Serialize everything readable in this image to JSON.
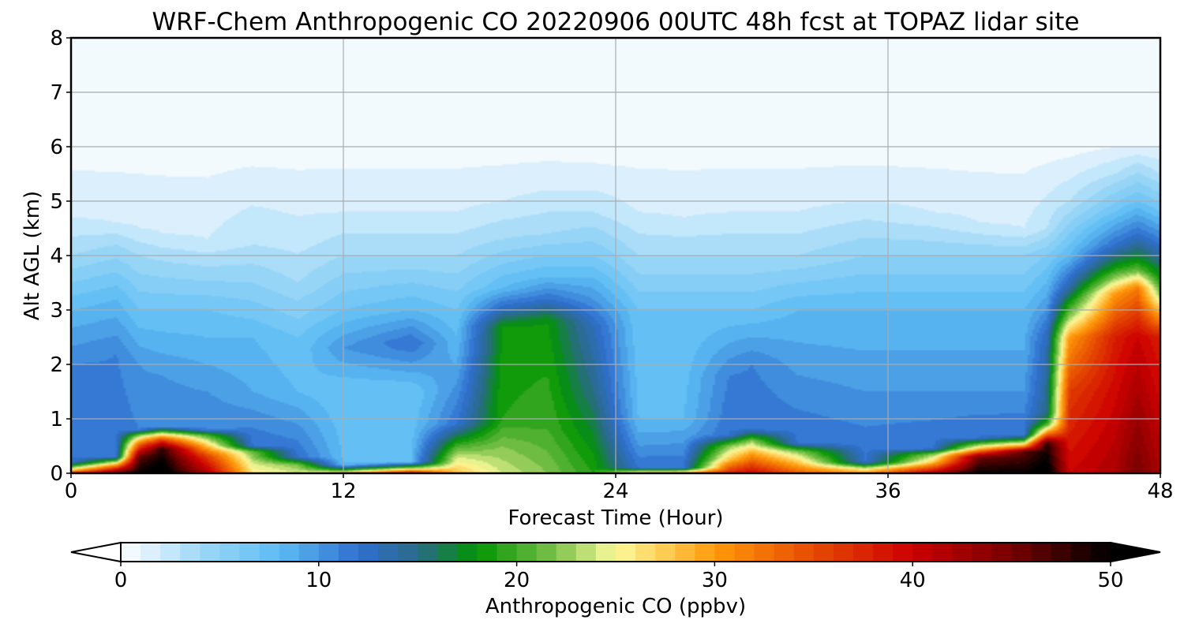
{
  "chart_data": {
    "type": "heatmap",
    "title": "WRF-Chem Anthropogenic CO  20220906 00UTC 48h fcst at TOPAZ lidar site",
    "xlabel": "Forecast Time (Hour)",
    "ylabel": "Alt AGL (km)",
    "xlim": [
      0,
      48
    ],
    "ylim": [
      0,
      8
    ],
    "xticks": [
      0,
      12,
      24,
      36,
      48
    ],
    "yticks": [
      0,
      1,
      2,
      3,
      4,
      5,
      6,
      7,
      8
    ],
    "grid": true,
    "colorbar": {
      "label": "Anthropogenic CO  (ppbv)",
      "min": 0,
      "max": 50,
      "ticks": [
        0,
        10,
        20,
        30,
        40,
        50
      ],
      "extend": "both",
      "stops": [
        {
          "value": 0,
          "color": "#ffffff"
        },
        {
          "value": 4,
          "color": "#9fd8f8"
        },
        {
          "value": 8,
          "color": "#5cbdf3"
        },
        {
          "value": 12,
          "color": "#2f6fd0"
        },
        {
          "value": 15,
          "color": "#2a6a88"
        },
        {
          "value": 18,
          "color": "#019401"
        },
        {
          "value": 22,
          "color": "#7fc24c"
        },
        {
          "value": 25,
          "color": "#fdfb9c"
        },
        {
          "value": 30,
          "color": "#ff9a0a"
        },
        {
          "value": 35,
          "color": "#e64a00"
        },
        {
          "value": 40,
          "color": "#cc0000"
        },
        {
          "value": 45,
          "color": "#760000"
        },
        {
          "value": 50,
          "color": "#000000"
        }
      ]
    },
    "hours": [
      0,
      2,
      3,
      4,
      6,
      8,
      10,
      12,
      15,
      17,
      19,
      21,
      23,
      25,
      27,
      29,
      30,
      32,
      35,
      38,
      40,
      42,
      43,
      44,
      46,
      47,
      48
    ],
    "field_profiles": [
      {
        "bands": [
          [
            0,
            40
          ],
          [
            0.05,
            28
          ],
          [
            0.2,
            12
          ],
          [
            2.0,
            11
          ],
          [
            3.0,
            8
          ],
          [
            4.0,
            4
          ],
          [
            4.7,
            2
          ],
          [
            6.0,
            0.5
          ],
          [
            8.0,
            0
          ]
        ]
      },
      {
        "bands": [
          [
            0,
            47
          ],
          [
            0.15,
            30
          ],
          [
            0.3,
            12
          ],
          [
            2.2,
            11
          ],
          [
            3.2,
            8
          ],
          [
            4.2,
            4
          ],
          [
            4.6,
            2
          ],
          [
            6.0,
            0.5
          ],
          [
            8.0,
            0
          ]
        ]
      },
      {
        "bands": [
          [
            0,
            50
          ],
          [
            0.3,
            46
          ],
          [
            0.55,
            32
          ],
          [
            0.7,
            22
          ],
          [
            0.8,
            11
          ],
          [
            2.0,
            10
          ],
          [
            3.0,
            7
          ],
          [
            4.0,
            4
          ],
          [
            4.5,
            2
          ],
          [
            6.0,
            0.5
          ],
          [
            8.0,
            0
          ]
        ]
      },
      {
        "bands": [
          [
            0,
            52
          ],
          [
            0.45,
            48
          ],
          [
            0.62,
            35
          ],
          [
            0.75,
            22
          ],
          [
            0.85,
            11
          ],
          [
            1.8,
            10
          ],
          [
            3.0,
            7
          ],
          [
            3.9,
            4
          ],
          [
            4.4,
            2
          ],
          [
            6.0,
            0.5
          ],
          [
            8.0,
            0
          ]
        ]
      },
      {
        "bands": [
          [
            0,
            42
          ],
          [
            0.3,
            36
          ],
          [
            0.55,
            26
          ],
          [
            0.7,
            20
          ],
          [
            0.8,
            11
          ],
          [
            1.5,
            10
          ],
          [
            3.0,
            7
          ],
          [
            3.8,
            4
          ],
          [
            4.3,
            2
          ],
          [
            6.0,
            0.5
          ],
          [
            8.0,
            0
          ]
        ]
      },
      {
        "bands": [
          [
            0,
            26
          ],
          [
            0.2,
            24
          ],
          [
            0.4,
            21
          ],
          [
            0.5,
            12
          ],
          [
            1.5,
            9
          ],
          [
            2.5,
            8
          ],
          [
            3.5,
            5
          ],
          [
            4.2,
            3
          ],
          [
            6.0,
            0.5
          ],
          [
            8.0,
            0
          ]
        ]
      },
      {
        "bands": [
          [
            0,
            24
          ],
          [
            0.15,
            22
          ],
          [
            0.3,
            12
          ],
          [
            1.5,
            8
          ],
          [
            2.5,
            7
          ],
          [
            3.5,
            4
          ],
          [
            4.3,
            2.5
          ],
          [
            6.0,
            0.5
          ],
          [
            8.0,
            0
          ]
        ]
      },
      {
        "bands": [
          [
            0,
            30
          ],
          [
            0.05,
            20
          ],
          [
            0.15,
            8
          ],
          [
            1.5,
            7
          ],
          [
            2.3,
            10
          ],
          [
            3.0,
            7
          ],
          [
            4.0,
            4
          ],
          [
            4.8,
            2
          ],
          [
            6.0,
            0.5
          ],
          [
            8.0,
            0
          ]
        ]
      },
      {
        "bands": [
          [
            0,
            40
          ],
          [
            0.1,
            22
          ],
          [
            0.2,
            8
          ],
          [
            1.5,
            7
          ],
          [
            2.4,
            12
          ],
          [
            3.0,
            8
          ],
          [
            4.0,
            4
          ],
          [
            4.8,
            2
          ],
          [
            6.0,
            0.5
          ],
          [
            8.0,
            0
          ]
        ]
      },
      {
        "bands": [
          [
            0,
            28
          ],
          [
            0.3,
            24
          ],
          [
            0.6,
            18
          ],
          [
            0.9,
            12
          ],
          [
            2.0,
            9
          ],
          [
            3.0,
            7
          ],
          [
            4.0,
            4
          ],
          [
            4.8,
            2
          ],
          [
            6.0,
            0.5
          ],
          [
            8.0,
            0
          ]
        ]
      },
      {
        "bands": [
          [
            0,
            24
          ],
          [
            0.5,
            22
          ],
          [
            1.0,
            19
          ],
          [
            2.7,
            18
          ],
          [
            3.0,
            13
          ],
          [
            3.4,
            8
          ],
          [
            4.3,
            4
          ],
          [
            5.0,
            2
          ],
          [
            6.0,
            0.5
          ],
          [
            8.0,
            0
          ]
        ]
      },
      {
        "bands": [
          [
            0,
            22
          ],
          [
            0.8,
            20
          ],
          [
            2.8,
            18
          ],
          [
            3.2,
            12
          ],
          [
            3.6,
            8
          ],
          [
            4.4,
            4
          ],
          [
            5.2,
            2
          ],
          [
            6.0,
            0.5
          ],
          [
            8.0,
            0
          ]
        ]
      },
      {
        "bands": [
          [
            0,
            19
          ],
          [
            1.5,
            15
          ],
          [
            2.7,
            13
          ],
          [
            3.2,
            10
          ],
          [
            4.0,
            6
          ],
          [
            4.8,
            3
          ],
          [
            5.4,
            1.5
          ],
          [
            6.0,
            0.5
          ],
          [
            8.0,
            0
          ]
        ]
      },
      {
        "bands": [
          [
            0,
            28
          ],
          [
            0.1,
            12
          ],
          [
            0.5,
            10
          ],
          [
            1.0,
            8
          ],
          [
            3.0,
            7
          ],
          [
            4.0,
            4
          ],
          [
            4.8,
            2
          ],
          [
            6.0,
            0.5
          ],
          [
            8.0,
            0
          ]
        ]
      },
      {
        "bands": [
          [
            0,
            30
          ],
          [
            0.1,
            12
          ],
          [
            1.0,
            8
          ],
          [
            3.0,
            7
          ],
          [
            4.0,
            4
          ],
          [
            4.7,
            2
          ],
          [
            6.0,
            0.5
          ],
          [
            8.0,
            0
          ]
        ]
      },
      {
        "bands": [
          [
            0,
            38
          ],
          [
            0.25,
            28
          ],
          [
            0.5,
            22
          ],
          [
            0.7,
            12
          ],
          [
            1.8,
            11
          ],
          [
            3.0,
            7
          ],
          [
            4.0,
            4
          ],
          [
            4.8,
            2
          ],
          [
            6.0,
            0.5
          ],
          [
            8.0,
            0
          ]
        ]
      },
      {
        "bands": [
          [
            0,
            40
          ],
          [
            0.35,
            30
          ],
          [
            0.6,
            22
          ],
          [
            0.8,
            12
          ],
          [
            2.0,
            11
          ],
          [
            3.0,
            7
          ],
          [
            4.0,
            4
          ],
          [
            4.8,
            2
          ],
          [
            6.0,
            0.5
          ],
          [
            8.0,
            0
          ]
        ]
      },
      {
        "bands": [
          [
            0,
            34
          ],
          [
            0.2,
            28
          ],
          [
            0.4,
            22
          ],
          [
            0.55,
            12
          ],
          [
            1.8,
            10
          ],
          [
            3.0,
            8
          ],
          [
            4.0,
            4
          ],
          [
            4.8,
            2
          ],
          [
            6.0,
            0.5
          ],
          [
            8.0,
            0
          ]
        ]
      },
      {
        "bands": [
          [
            0,
            30
          ],
          [
            0.08,
            25
          ],
          [
            0.2,
            12
          ],
          [
            1.5,
            10
          ],
          [
            3.0,
            8
          ],
          [
            4.0,
            5
          ],
          [
            5.0,
            2
          ],
          [
            6.0,
            0.5
          ],
          [
            8.0,
            0
          ]
        ]
      },
      {
        "bands": [
          [
            0,
            42
          ],
          [
            0.2,
            28
          ],
          [
            0.35,
            22
          ],
          [
            0.45,
            12
          ],
          [
            1.5,
            10
          ],
          [
            3.0,
            8
          ],
          [
            4.0,
            5
          ],
          [
            4.8,
            2
          ],
          [
            6.0,
            0.5
          ],
          [
            8.0,
            0
          ]
        ]
      },
      {
        "bands": [
          [
            0,
            50
          ],
          [
            0.3,
            45
          ],
          [
            0.45,
            28
          ],
          [
            0.55,
            20
          ],
          [
            0.65,
            12
          ],
          [
            1.5,
            10
          ],
          [
            3.0,
            8
          ],
          [
            4.0,
            5
          ],
          [
            4.6,
            2
          ],
          [
            6.0,
            0.5
          ],
          [
            8.0,
            0
          ]
        ]
      },
      {
        "bands": [
          [
            0,
            50
          ],
          [
            0.4,
            46
          ],
          [
            0.5,
            30
          ],
          [
            0.6,
            20
          ],
          [
            0.7,
            12
          ],
          [
            1.5,
            10
          ],
          [
            3.0,
            8
          ],
          [
            4.0,
            5
          ],
          [
            4.5,
            2
          ],
          [
            6.0,
            0.5
          ],
          [
            8.0,
            0
          ]
        ]
      },
      {
        "bands": [
          [
            0,
            52
          ],
          [
            0.55,
            48
          ],
          [
            0.75,
            30
          ],
          [
            0.9,
            20
          ],
          [
            1.1,
            15
          ],
          [
            2.5,
            13
          ],
          [
            3.0,
            10
          ],
          [
            4.0,
            6
          ],
          [
            4.5,
            3
          ],
          [
            6.0,
            0.5
          ],
          [
            8.0,
            0
          ]
        ]
      },
      {
        "bands": [
          [
            0,
            40
          ],
          [
            1.5,
            36
          ],
          [
            2.5,
            30
          ],
          [
            2.9,
            22
          ],
          [
            3.1,
            19
          ],
          [
            3.4,
            14
          ],
          [
            4.0,
            8
          ],
          [
            5.0,
            3
          ],
          [
            6.0,
            0.5
          ],
          [
            8.0,
            0
          ]
        ]
      },
      {
        "bands": [
          [
            0,
            42
          ],
          [
            2.5,
            38
          ],
          [
            3.3,
            30
          ],
          [
            3.6,
            22
          ],
          [
            3.8,
            18
          ],
          [
            4.2,
            12
          ],
          [
            4.8,
            7
          ],
          [
            5.5,
            3
          ],
          [
            6.0,
            1
          ],
          [
            8.0,
            0
          ]
        ]
      },
      {
        "bands": [
          [
            0,
            45
          ],
          [
            2.5,
            40
          ],
          [
            3.4,
            32
          ],
          [
            3.7,
            22
          ],
          [
            3.9,
            18
          ],
          [
            4.4,
            12
          ],
          [
            5.0,
            7
          ],
          [
            5.7,
            3
          ],
          [
            6.0,
            1
          ],
          [
            8.0,
            0
          ]
        ]
      },
      {
        "bands": [
          [
            0,
            42
          ],
          [
            2.5,
            38
          ],
          [
            3.0,
            28
          ],
          [
            3.3,
            22
          ],
          [
            3.6,
            18
          ],
          [
            4.2,
            12
          ],
          [
            4.8,
            7
          ],
          [
            5.5,
            3
          ],
          [
            6.0,
            1
          ],
          [
            8.0,
            0
          ]
        ]
      }
    ]
  }
}
